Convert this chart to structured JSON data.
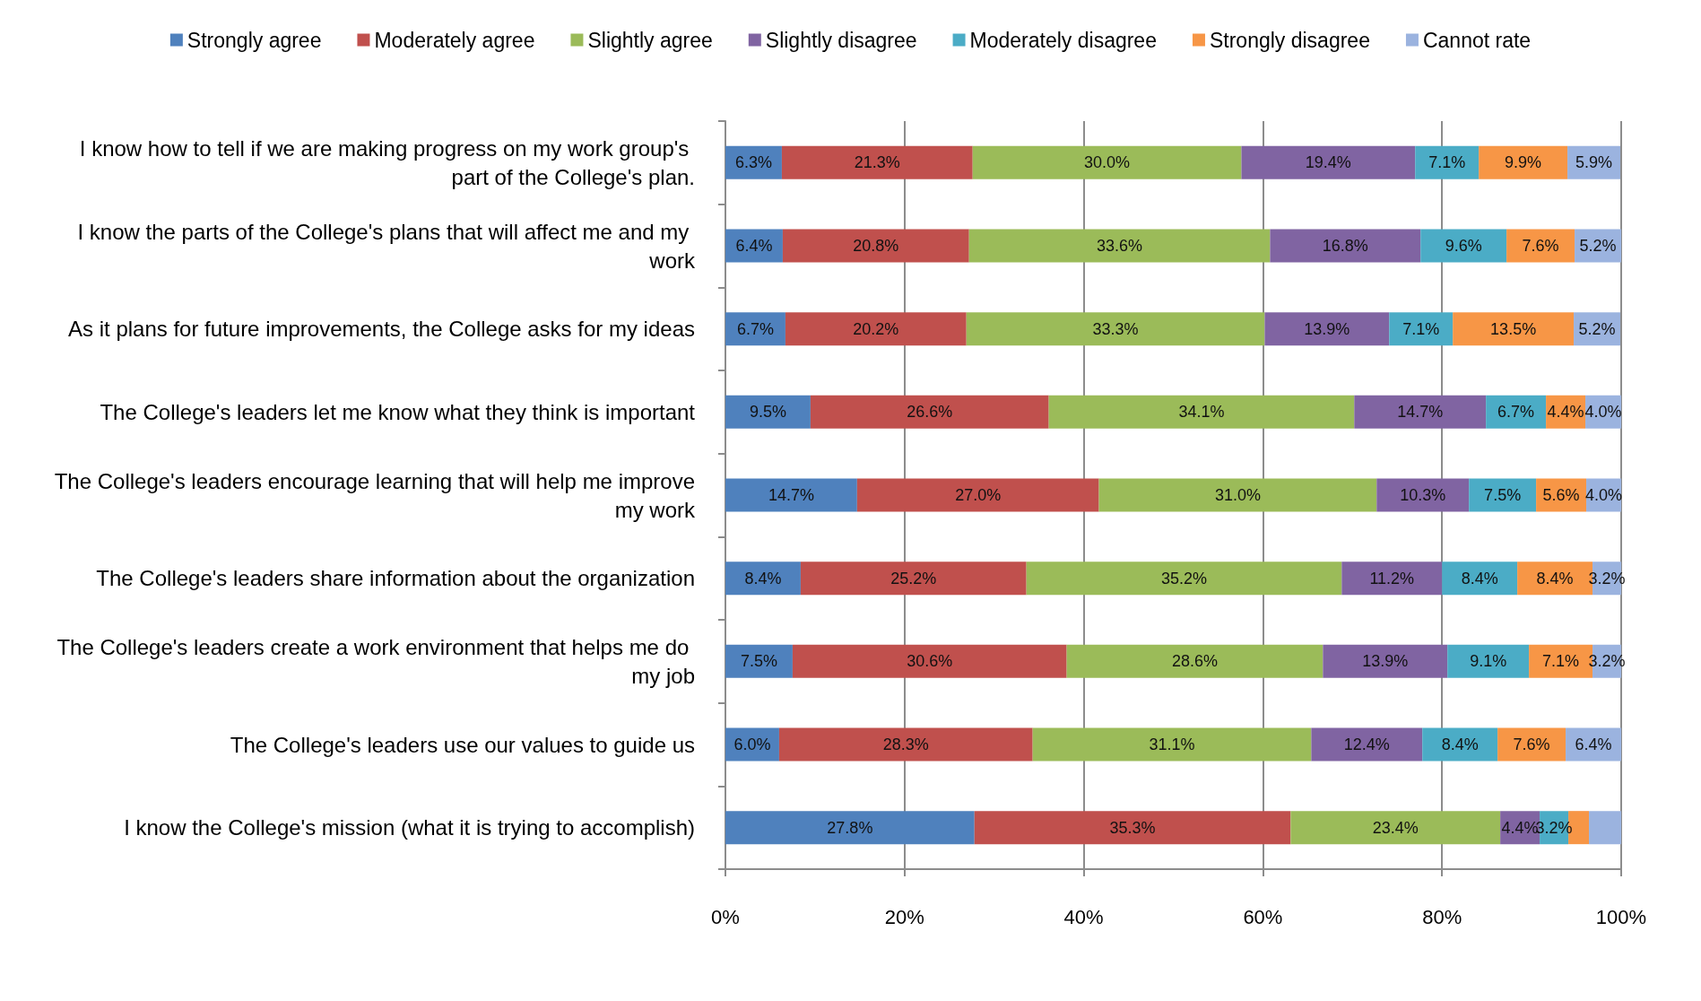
{
  "chart_data": {
    "type": "bar",
    "orientation": "horizontal",
    "stacked": true,
    "categories": [
      "I know how to tell if we are making progress on my work group's part of the College's plan.",
      "I know the parts of the College's plans that will affect me and my work",
      "As it plans for future improvements, the College asks for my ideas",
      "The College's leaders let me know what they think is important",
      "The College's leaders encourage learning that will help me improve my work",
      "The College's leaders share information about the organization",
      "The College's leaders create a work environment that helps me do my job",
      "The College's leaders use our values to guide us",
      "I know the College's mission (what it is trying to accomplish)"
    ],
    "series": [
      {
        "name": "Strongly agree",
        "color": "#4f81bd",
        "values": [
          6.3,
          6.4,
          6.7,
          9.5,
          14.7,
          8.4,
          7.5,
          6.0,
          27.8
        ],
        "value_labels": [
          "6.3%",
          "6.4%",
          "6.7%",
          "9.5%",
          "14.7%",
          "8.4%",
          "7.5%",
          "6.0%",
          "27.8%"
        ]
      },
      {
        "name": "Moderately agree",
        "color": "#c0504d",
        "values": [
          21.3,
          20.8,
          20.2,
          26.6,
          27.0,
          25.2,
          30.6,
          28.3,
          35.3
        ],
        "value_labels": [
          "21.3%",
          "20.8%",
          "20.2%",
          "26.6%",
          "27.0%",
          "25.2%",
          "30.6%",
          "28.3%",
          "35.3%"
        ]
      },
      {
        "name": "Slightly agree",
        "color": "#9bbb59",
        "values": [
          30.0,
          33.6,
          33.3,
          34.1,
          31.0,
          35.2,
          28.6,
          31.1,
          23.4
        ],
        "value_labels": [
          "30.0%",
          "33.6%",
          "33.3%",
          "34.1%",
          "31.0%",
          "35.2%",
          "28.6%",
          "31.1%",
          "23.4%"
        ]
      },
      {
        "name": "Slightly disagree",
        "color": "#8064a2",
        "values": [
          19.4,
          16.8,
          13.9,
          14.7,
          10.3,
          11.2,
          13.9,
          12.4,
          4.4
        ],
        "value_labels": [
          "19.4%",
          "16.8%",
          "13.9%",
          "14.7%",
          "10.3%",
          "11.2%",
          "13.9%",
          "12.4%",
          "4.4%"
        ]
      },
      {
        "name": "Moderately disagree",
        "color": "#4bacc6",
        "values": [
          7.1,
          9.6,
          7.1,
          6.7,
          7.5,
          8.4,
          9.1,
          8.4,
          3.2
        ],
        "value_labels": [
          "7.1%",
          "9.6%",
          "7.1%",
          "6.7%",
          "7.5%",
          "8.4%",
          "9.1%",
          "8.4%",
          "3.2%"
        ]
      },
      {
        "name": "Strongly disagree",
        "color": "#f79646",
        "values": [
          9.9,
          7.6,
          13.5,
          4.4,
          5.6,
          8.4,
          7.1,
          7.6,
          2.3
        ],
        "value_labels": [
          "9.9%",
          "7.6%",
          "13.5%",
          "4.4%",
          "5.6%",
          "8.4%",
          "7.1%",
          "7.6%",
          null
        ]
      },
      {
        "name": "Cannot rate",
        "color": "#9bb3df",
        "values": [
          5.9,
          5.2,
          5.2,
          4.0,
          4.0,
          3.2,
          3.2,
          6.4,
          3.6
        ],
        "value_labels": [
          "5.9%",
          "5.2%",
          "5.2%",
          "4.0%",
          "4.0%",
          "3.2%",
          "3.2%",
          "6.4%",
          null
        ]
      }
    ],
    "xlim": [
      0,
      100
    ],
    "xticks": [
      {
        "value": 0,
        "label": "0%"
      },
      {
        "value": 20,
        "label": "20%"
      },
      {
        "value": 40,
        "label": "40%"
      },
      {
        "value": 60,
        "label": "60%"
      },
      {
        "value": 80,
        "label": "80%"
      },
      {
        "value": 100,
        "label": "100%"
      }
    ],
    "grid": "x",
    "legend": "top"
  }
}
